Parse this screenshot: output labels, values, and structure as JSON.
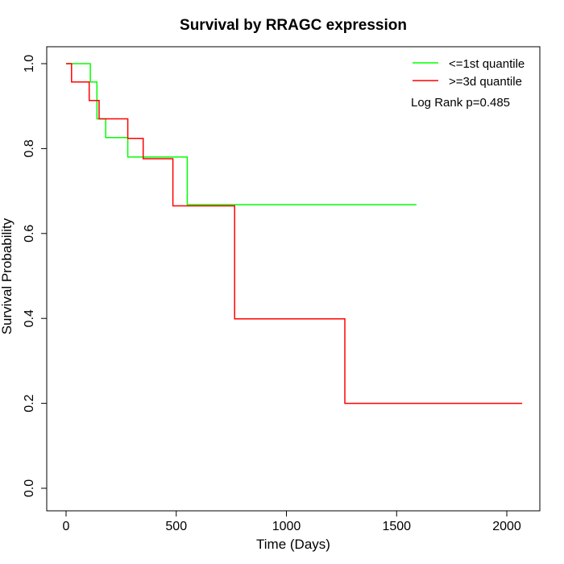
{
  "chart_data": {
    "type": "line",
    "title": "Survival by RRAGC expression",
    "xlabel": "Time (Days)",
    "ylabel": "Survival Probability",
    "xlim": [
      0,
      2070
    ],
    "ylim": [
      0,
      1.0
    ],
    "x_ticks": [
      0,
      500,
      1000,
      1500,
      2000
    ],
    "y_ticks": [
      0.0,
      0.2,
      0.4,
      0.6,
      0.8,
      1.0
    ],
    "x_tick_labels": [
      "0",
      "500",
      "1000",
      "1500",
      "2000"
    ],
    "y_tick_labels": [
      "0.0",
      "0.2",
      "0.4",
      "0.6",
      "0.8",
      "1.0"
    ],
    "grid": false,
    "legend_position": "top-right",
    "annotation": "Log Rank p=0.485",
    "series": [
      {
        "name": "<=1st quantile",
        "color": "#00ff00",
        "x": [
          0,
          110,
          110,
          140,
          140,
          180,
          180,
          280,
          280,
          550,
          550,
          1590
        ],
        "y": [
          1.0,
          1.0,
          0.957,
          0.957,
          0.87,
          0.87,
          0.826,
          0.826,
          0.78,
          0.78,
          0.668,
          0.668
        ]
      },
      {
        "name": ">=3d quantile",
        "color": "#ff0000",
        "x": [
          0,
          25,
          25,
          105,
          105,
          150,
          150,
          280,
          280,
          350,
          350,
          485,
          485,
          765,
          765,
          1265,
          1265,
          2070
        ],
        "y": [
          1.0,
          1.0,
          0.957,
          0.957,
          0.913,
          0.913,
          0.87,
          0.87,
          0.824,
          0.824,
          0.776,
          0.776,
          0.665,
          0.665,
          0.399,
          0.399,
          0.2,
          0.2
        ]
      }
    ]
  }
}
